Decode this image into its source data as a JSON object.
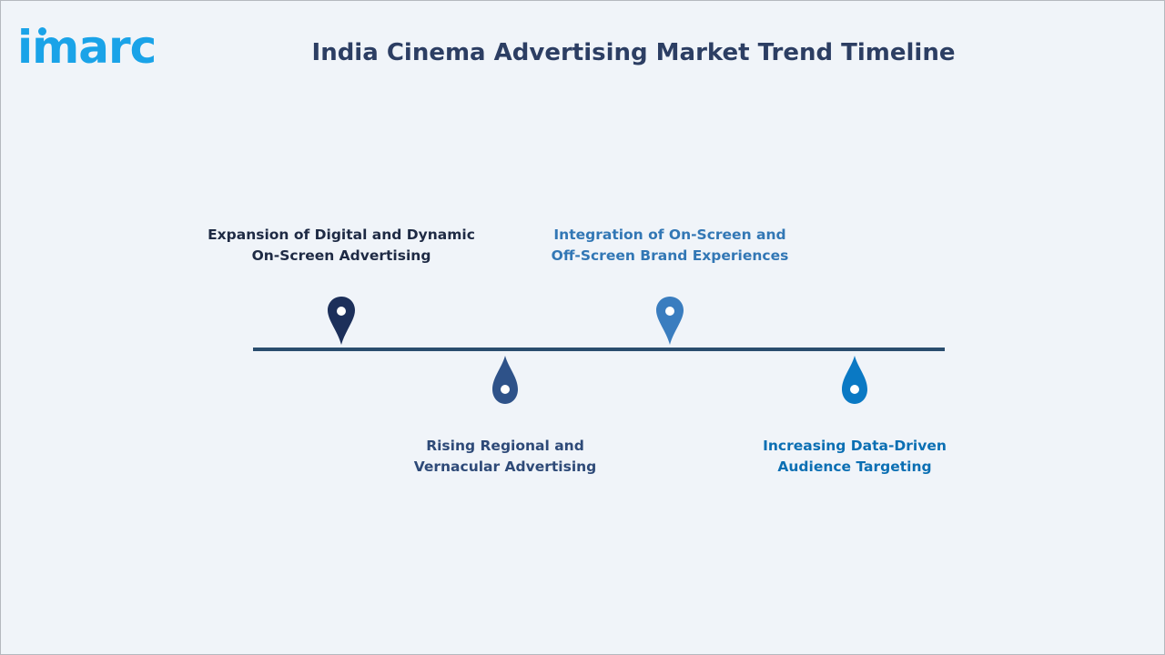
{
  "logo": {
    "text": "imarc",
    "color": "#1aa3e8"
  },
  "title": "India Cinema Advertising Market Trend Timeline",
  "timeline": {
    "line_color": "#2a4d6e",
    "items": [
      {
        "line1": "Expansion of Digital and Dynamic",
        "line2": "On-Screen Advertising",
        "color": "#1c2f5a",
        "label_color": "#1e2a44",
        "position": "above"
      },
      {
        "line1": "Rising Regional and",
        "line2": "Vernacular Advertising",
        "color": "#2e5289",
        "label_color": "#2e4a78",
        "position": "below"
      },
      {
        "line1": "Integration of On-Screen and",
        "line2": "Off-Screen Brand Experiences",
        "color": "#3a7dbf",
        "label_color": "#3277b5",
        "position": "above"
      },
      {
        "line1": "Increasing Data-Driven",
        "line2": "Audience Targeting",
        "color": "#0a79c4",
        "label_color": "#0b6fb3",
        "position": "below"
      }
    ]
  }
}
